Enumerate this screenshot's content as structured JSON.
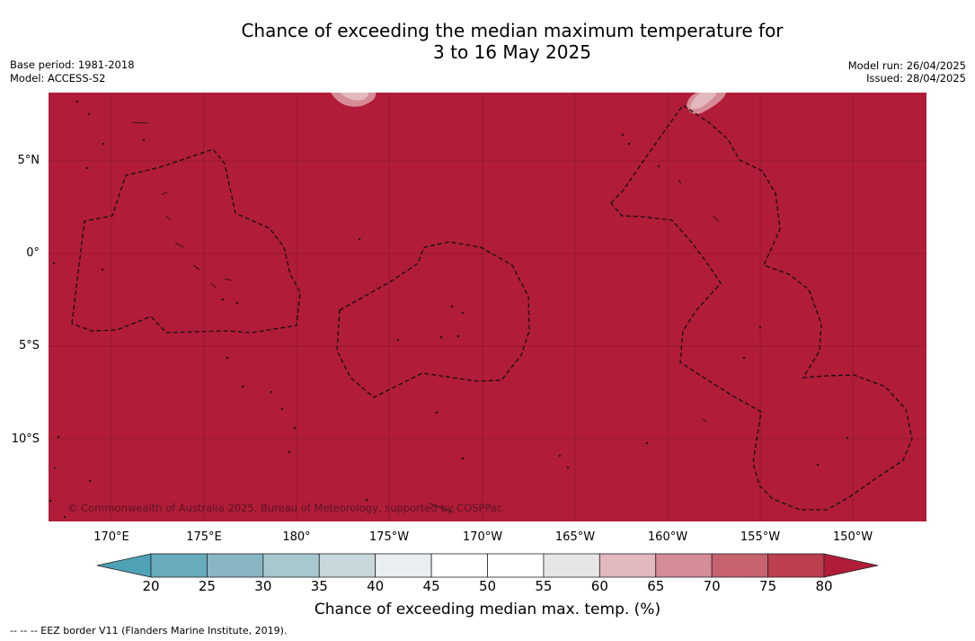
{
  "title": {
    "line1": "Chance of exceeding the median maximum temperature for",
    "line2": "3 to 16 May 2025"
  },
  "meta": {
    "base_period": "Base period: 1981-2018",
    "model": "Model: ACCESS-S2",
    "model_run": "Model run: 26/04/2025",
    "issued": "Issued: 28/04/2025"
  },
  "map": {
    "fill_color": "#b11c39",
    "lat_labels": [
      "5°N",
      "0°",
      "5°S",
      "10°S"
    ],
    "lon_labels": [
      "170°E",
      "175°E",
      "180°",
      "175°W",
      "170°W",
      "165°W",
      "160°W",
      "155°W",
      "150°W"
    ],
    "copyright": "© Commonwealth of Australia 2025, Bureau of Meteorology, supported by COSPPac"
  },
  "colorbar": {
    "title": "Chance of exceeding median max. temp. (%)",
    "ticks": [
      "20",
      "25",
      "30",
      "35",
      "40",
      "45",
      "50",
      "55",
      "60",
      "65",
      "70",
      "75",
      "80"
    ],
    "colors": [
      "#67abbd",
      "#88b6c4",
      "#a7c8cf",
      "#c8d9dd",
      "#e9eff1",
      "#ffffff",
      "#ffffff",
      "#e6e6e6",
      "#e2b9be",
      "#d58c96",
      "#c7626f",
      "#bb3e51"
    ],
    "under_color": "#4fa2b6",
    "over_color": "#b11c39"
  },
  "footnote": "--  --  -- EEZ border V11 (Flanders Marine Institute, 2019)."
}
